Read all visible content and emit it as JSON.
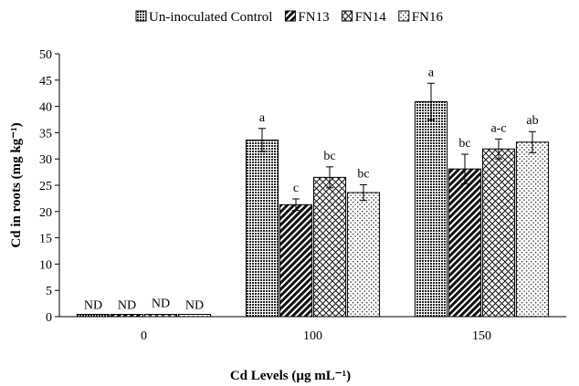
{
  "chart_data": {
    "type": "bar",
    "title": "",
    "xlabel": "Cd Levels (µg mL⁻¹)",
    "ylabel": "Cd in roots (mg kg⁻¹)",
    "ylim": [
      0,
      50
    ],
    "yticks": [
      0,
      5,
      10,
      15,
      20,
      25,
      30,
      35,
      40,
      45,
      50
    ],
    "categories": [
      "0",
      "100",
      "150"
    ],
    "legend_position": "top",
    "grid": false,
    "series": [
      {
        "name": "Un-inoculated Control",
        "pattern": "dots-dense",
        "values": [
          0.3,
          33.6,
          40.9
        ],
        "errors": [
          0,
          2.2,
          3.5
        ],
        "labels": [
          "ND",
          "a",
          "a"
        ]
      },
      {
        "name": "FN13",
        "pattern": "diagonal",
        "values": [
          0.2,
          21.3,
          28.1
        ],
        "errors": [
          0,
          1.1,
          2.8
        ],
        "labels": [
          "ND",
          "c",
          "bc"
        ]
      },
      {
        "name": "FN14",
        "pattern": "crosshatch",
        "values": [
          0.3,
          26.5,
          31.9
        ],
        "errors": [
          0,
          2.0,
          1.9
        ],
        "labels": [
          "ND",
          "bc",
          "a-c"
        ]
      },
      {
        "name": "FN16",
        "pattern": "dots-sparse",
        "values": [
          0.3,
          23.6,
          33.2
        ],
        "errors": [
          0,
          1.5,
          2.0
        ],
        "labels": [
          "ND",
          "bc",
          "ab"
        ]
      }
    ]
  }
}
